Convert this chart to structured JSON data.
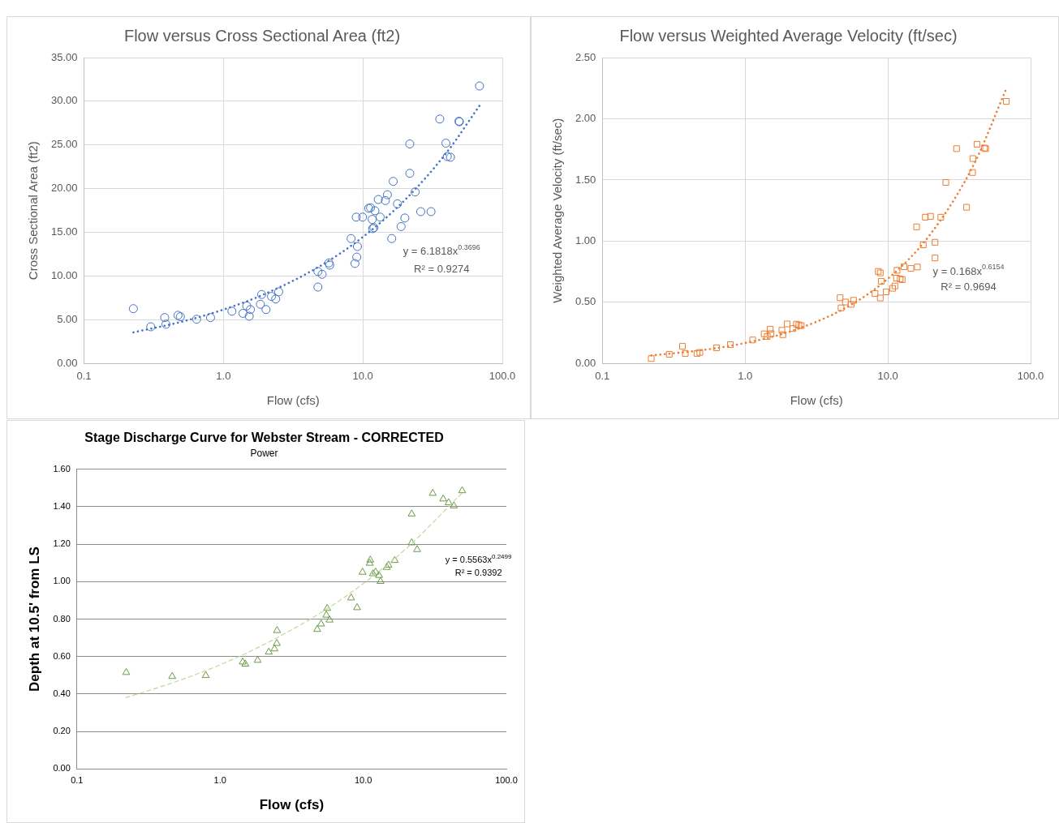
{
  "chart_data": [
    {
      "type": "scatter",
      "title": "Flow versus Cross Sectional Area (ft2)",
      "xlabel": "Flow (cfs)",
      "ylabel": "Cross Sectional Area (ft2)",
      "log": "x",
      "grid": true,
      "legend": false,
      "marker": "circle",
      "xlim": [
        0.1,
        100
      ],
      "xticks": [
        {
          "value": 0.1,
          "label": "0.1"
        },
        {
          "value": 1,
          "label": "1.0"
        },
        {
          "value": 10,
          "label": "10.0"
        },
        {
          "value": 100,
          "label": "100.0"
        }
      ],
      "ylim": [
        0,
        35
      ],
      "yticks": [
        {
          "value": 0,
          "label": "0.00"
        },
        {
          "value": 5,
          "label": "5.00"
        },
        {
          "value": 10,
          "label": "10.00"
        },
        {
          "value": 15,
          "label": "15.00"
        },
        {
          "value": 20,
          "label": "20.00"
        },
        {
          "value": 25,
          "label": "25.00"
        },
        {
          "value": 30,
          "label": "30.00"
        },
        {
          "value": 35,
          "label": "35.00"
        }
      ],
      "series": [
        {
          "color": "#4472c4",
          "x": [
            0.226,
            0.301,
            0.379,
            0.387,
            0.472,
            0.491,
            0.642,
            0.808,
            1.15,
            1.38,
            1.47,
            1.53,
            1.56,
            1.84,
            1.88,
            2.02,
            2.21,
            2.37,
            2.49,
            4.76,
            4.76,
            5.1,
            5.7,
            5.78,
            8.23,
            8.77,
            9.04,
            9.14,
            8.96,
            9.95,
            11.0,
            11.35,
            12.2,
            11.66,
            11.75,
            12.0,
            13.3,
            12.9,
            14.5,
            15.0,
            16.5,
            17.7,
            16.1,
            18.8,
            20.0,
            21.7,
            21.7,
            23.7,
            26.0,
            30.8,
            35.6,
            39.4,
            40.3,
            42.5,
            48.9,
            49.2,
            68.6
          ],
          "values": [
            6.28,
            4.21,
            5.26,
            4.5,
            5.52,
            5.36,
            5.07,
            5.26,
            5.99,
            5.74,
            6.59,
            5.42,
            6.18,
            6.78,
            7.9,
            6.18,
            7.68,
            7.39,
            8.21,
            8.75,
            10.53,
            10.21,
            11.51,
            11.26,
            14.3,
            11.45,
            12.18,
            13.39,
            16.75,
            16.75,
            17.76,
            17.82,
            17.48,
            16.49,
            15.44,
            15.54,
            16.75,
            18.77,
            18.65,
            19.31,
            20.84,
            18.27,
            14.3,
            15.67,
            16.65,
            21.76,
            25.12,
            19.63,
            17.38,
            17.38,
            27.97,
            25.21,
            23.69,
            23.6,
            27.72,
            27.66,
            31.75
          ]
        },
        {
          "type": "line",
          "color": "#4472c4",
          "marker": "none",
          "line_style": "dotted",
          "x": [
            0.226,
            0.5,
            1,
            2,
            5,
            10,
            20,
            40,
            68.6
          ],
          "values": [
            3.57,
            4.78,
            6.18,
            7.99,
            11.21,
            14.48,
            18.71,
            24.17,
            29.5
          ]
        }
      ],
      "annotations": [
        "y = 6.1818x$^{0.3696}$",
        "R² = 0.9274"
      ]
    },
    {
      "type": "scatter",
      "title": "Flow versus Weighted Average Velocity (ft/sec)",
      "xlabel": "Flow (cfs)",
      "ylabel": "Weighted Average Velocity (ft/sec)",
      "log": "x",
      "grid": true,
      "legend": false,
      "marker": "square",
      "xlim": [
        0.1,
        100
      ],
      "xticks": [
        {
          "value": 0.1,
          "label": "0.1"
        },
        {
          "value": 1,
          "label": "1.0"
        },
        {
          "value": 10,
          "label": "10.0"
        },
        {
          "value": 100,
          "label": "100.0"
        }
      ],
      "ylim": [
        0,
        2.5
      ],
      "yticks": [
        {
          "value": 0,
          "label": "0.00"
        },
        {
          "value": 0.5,
          "label": "0.50"
        },
        {
          "value": 1,
          "label": "1.00"
        },
        {
          "value": 1.5,
          "label": "1.50"
        },
        {
          "value": 2,
          "label": "2.00"
        },
        {
          "value": 2.5,
          "label": "2.50"
        }
      ],
      "series": [
        {
          "color": "#ed7d31",
          "x": [
            0.22,
            0.294,
            0.364,
            0.381,
            0.46,
            0.482,
            0.63,
            0.789,
            1.13,
            1.36,
            1.43,
            1.5,
            1.52,
            1.81,
            1.84,
            1.97,
            2.16,
            2.29,
            2.38,
            2.47,
            4.7,
            4.63,
            5.04,
            5.53,
            5.75,
            8.13,
            8.57,
            8.85,
            8.98,
            8.85,
            9.73,
            10.8,
            11.2,
            11.6,
            11.5,
            12.2,
            12.6,
            13.0,
            14.5,
            16.1,
            15.9,
            17.7,
            18.3,
            19.9,
            21.4,
            21.4,
            23.5,
            25.5,
            30.3,
            35.6,
            39.2,
            39.4,
            42.1,
            47.5,
            48.4,
            67.6
          ],
          "values": [
            0.041,
            0.076,
            0.141,
            0.083,
            0.083,
            0.091,
            0.129,
            0.155,
            0.193,
            0.243,
            0.222,
            0.281,
            0.245,
            0.272,
            0.236,
            0.324,
            0.286,
            0.322,
            0.315,
            0.31,
            0.455,
            0.538,
            0.503,
            0.484,
            0.517,
            0.572,
            0.753,
            0.741,
            0.672,
            0.536,
            0.586,
            0.615,
            0.634,
            0.762,
            0.698,
            0.691,
            0.686,
            0.791,
            0.777,
            0.789,
            1.117,
            0.97,
            1.196,
            1.203,
            0.991,
            0.863,
            1.196,
            1.48,
            1.756,
            1.277,
            1.561,
            1.675,
            1.792,
            1.761,
            1.756,
            2.142
          ]
        },
        {
          "type": "line",
          "color": "#ed7d31",
          "marker": "none",
          "line_style": "dotted",
          "x": [
            0.22,
            0.5,
            1,
            2,
            5,
            10,
            20,
            40,
            67.6
          ],
          "values": [
            0.066,
            0.11,
            0.168,
            0.257,
            0.452,
            0.693,
            1.062,
            1.626,
            2.246
          ]
        }
      ],
      "annotations": [
        "y = 0.168x$^{0.6154}$",
        "R² = 0.9694"
      ]
    },
    {
      "type": "scatter",
      "title": "Stage Discharge Curve for Webster Stream - CORRECTED",
      "subtitle": "Power",
      "xlabel": "Flow (cfs)",
      "ylabel": "Depth at 10.5' from LS",
      "log": "x",
      "grid": "y",
      "legend": false,
      "marker": "triangle",
      "xlim": [
        0.1,
        100
      ],
      "xticks": [
        {
          "value": 0.1,
          "label": "0.1"
        },
        {
          "value": 1,
          "label": "1.0"
        },
        {
          "value": 10,
          "label": "10.0"
        },
        {
          "value": 100,
          "label": "100.0"
        }
      ],
      "ylim": [
        0,
        1.6
      ],
      "yticks": [
        {
          "value": 0,
          "label": "0.00"
        },
        {
          "value": 0.2,
          "label": "0.20"
        },
        {
          "value": 0.4,
          "label": "0.40"
        },
        {
          "value": 0.6,
          "label": "0.60"
        },
        {
          "value": 0.8,
          "label": "0.80"
        },
        {
          "value": 1,
          "label": "1.00"
        },
        {
          "value": 1.2,
          "label": "1.20"
        },
        {
          "value": 1.4,
          "label": "1.40"
        },
        {
          "value": 1.6,
          "label": "1.60"
        }
      ],
      "series": [
        {
          "color": "#6b9a47",
          "x": [
            0.221,
            0.463,
            0.794,
            1.44,
            1.5,
            1.83,
            2.19,
            2.4,
            2.49,
            2.5,
            4.77,
            5.08,
            5.52,
            5.6,
            5.82,
            8.23,
            9.06,
            9.89,
            11.1,
            11.2,
            11.7,
            12.2,
            12.9,
            13.2,
            14.6,
            15.0,
            16.6,
            21.8,
            21.8,
            23.8,
            30.6,
            36.2,
            39.5,
            43.0,
            49.1
          ],
          "values": [
            0.515,
            0.494,
            0.499,
            0.571,
            0.56,
            0.58,
            0.624,
            0.641,
            0.67,
            0.739,
            0.745,
            0.774,
            0.821,
            0.857,
            0.795,
            0.913,
            0.861,
            1.05,
            1.098,
            1.115,
            1.042,
            1.051,
            1.033,
            1.001,
            1.076,
            1.088,
            1.113,
            1.361,
            1.207,
            1.171,
            1.471,
            1.441,
            1.421,
            1.404,
            1.485
          ]
        },
        {
          "type": "line",
          "color": "#c4d79b",
          "marker": "none",
          "line_style": "dashed",
          "x": [
            0.22,
            0.5,
            1,
            2,
            5,
            10,
            20,
            49.1
          ],
          "values": [
            0.381,
            0.468,
            0.556,
            0.662,
            0.832,
            0.989,
            1.177,
            1.473
          ]
        }
      ],
      "annotations": [
        "y = 0.5563x$^{0.2499}$",
        "R² = 0.9392"
      ]
    }
  ]
}
